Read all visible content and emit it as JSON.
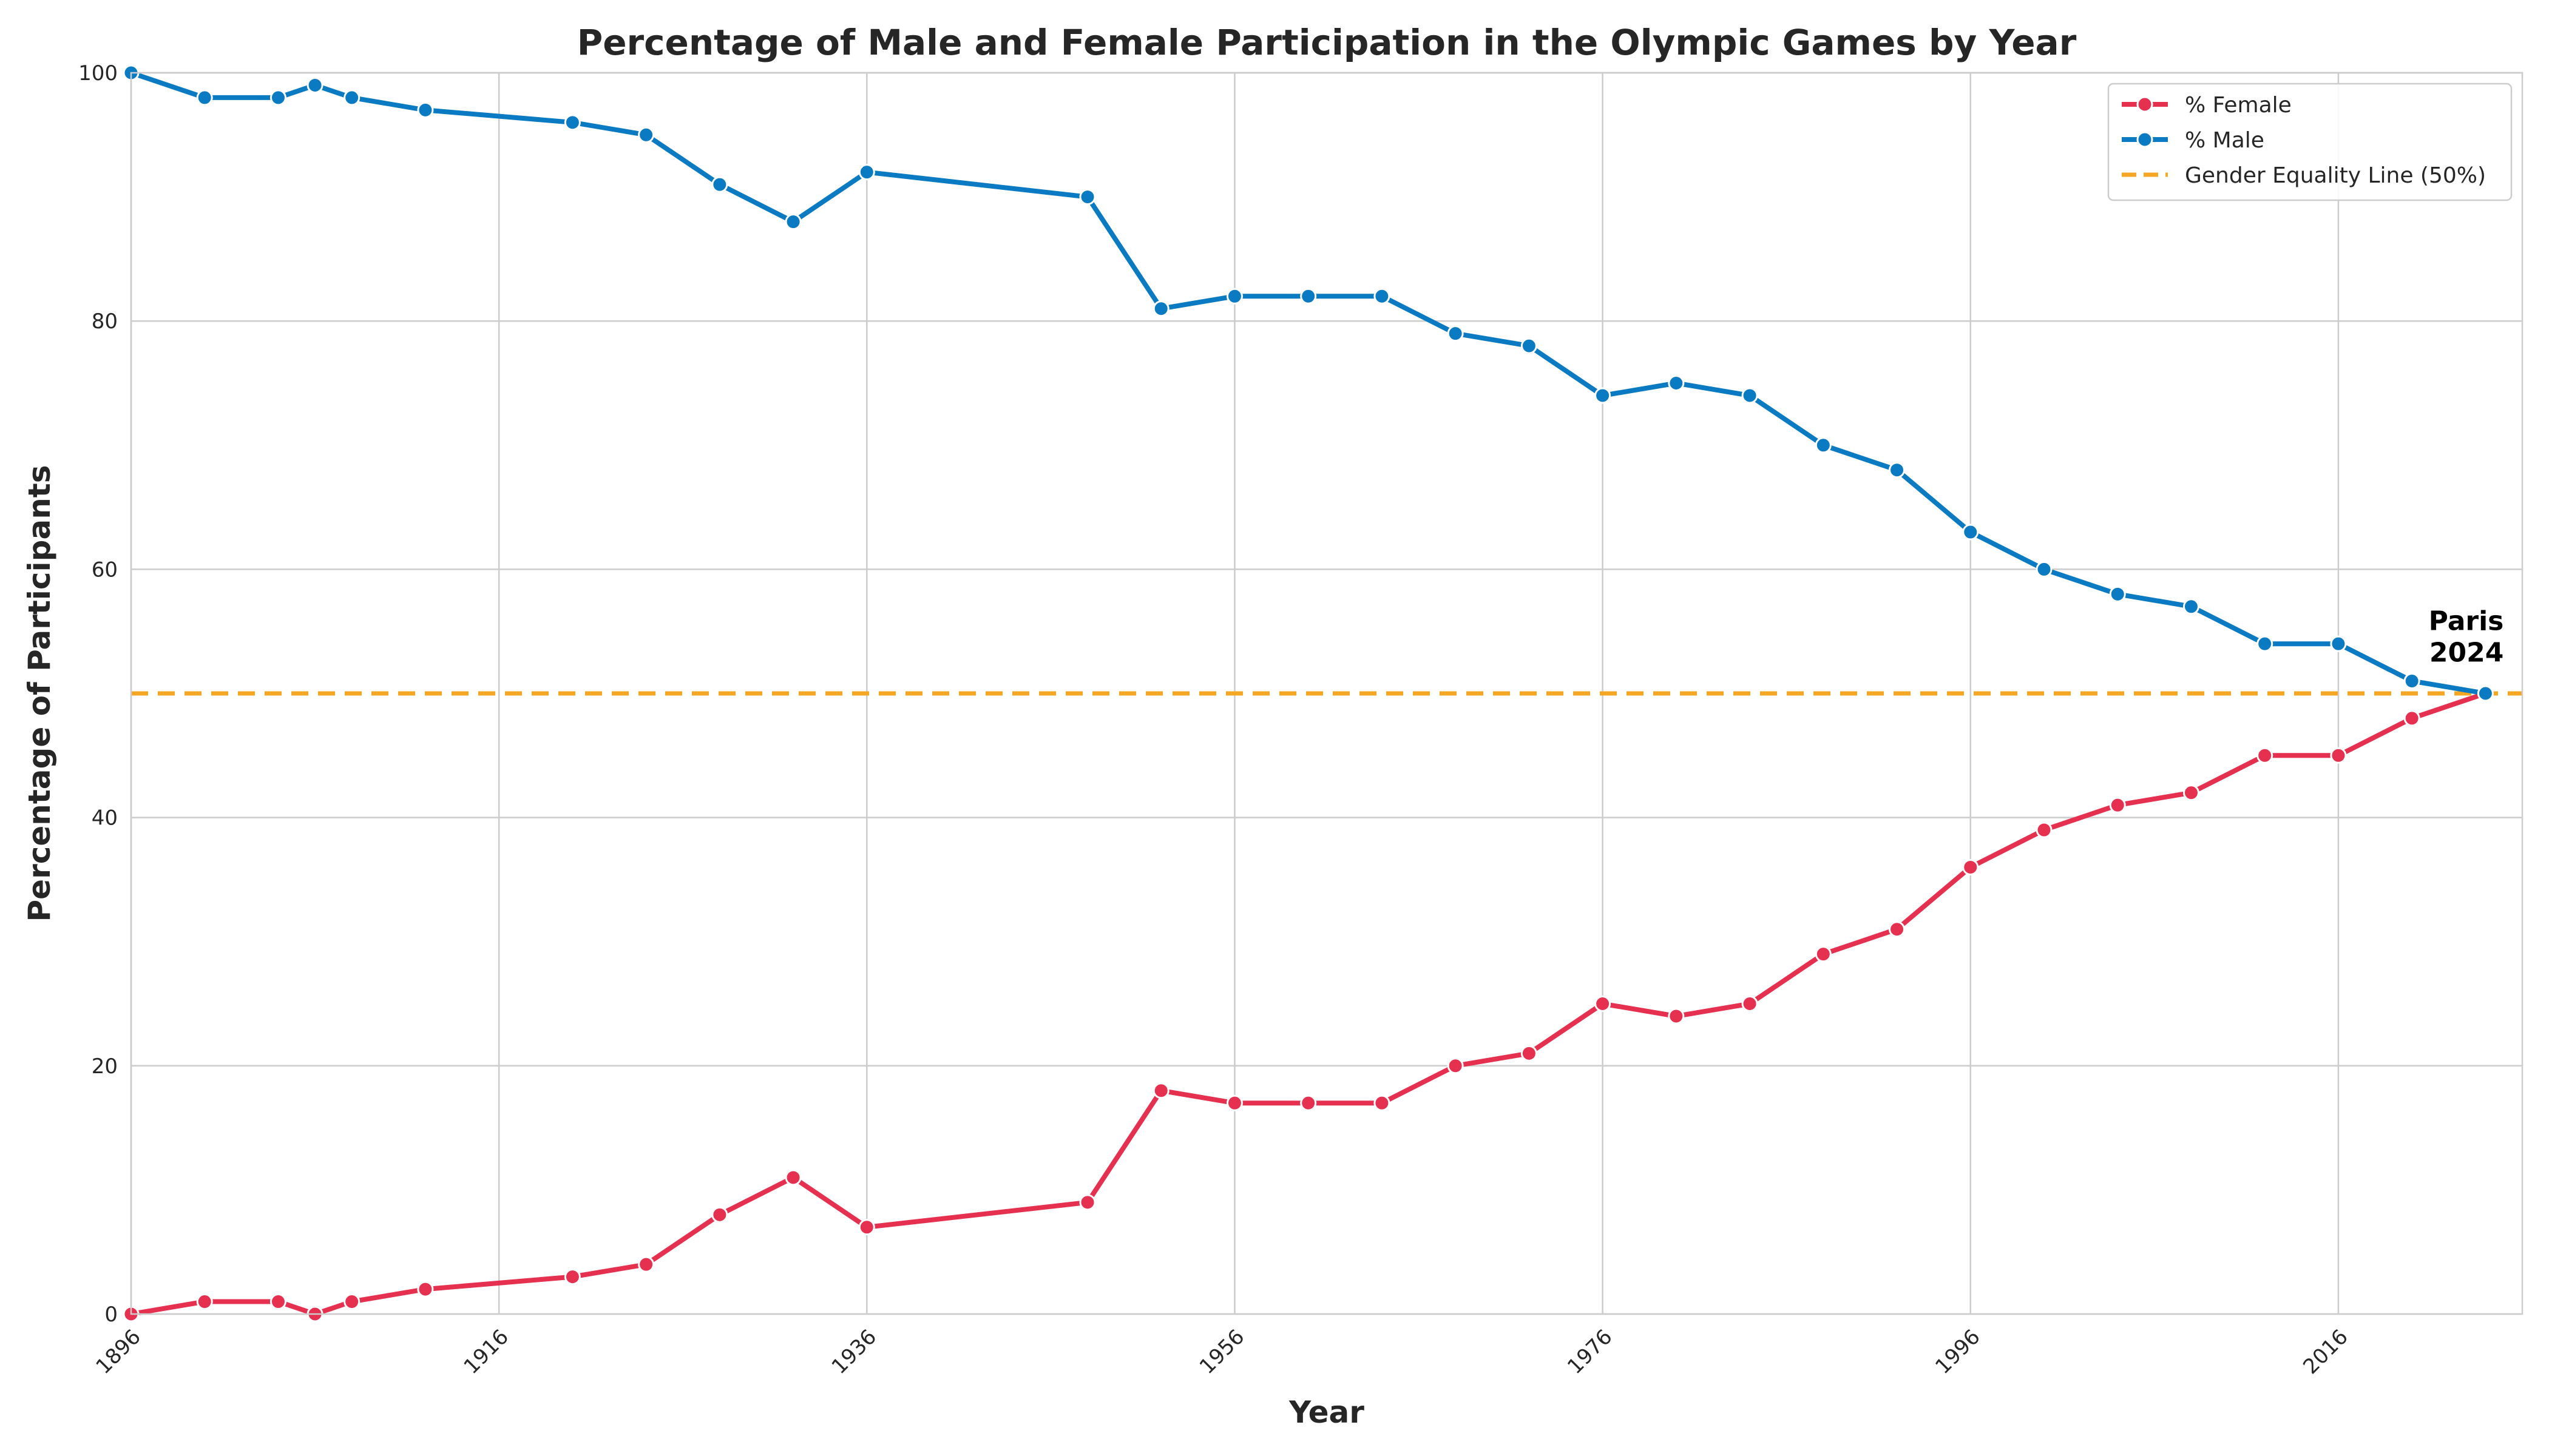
{
  "chart_data": {
    "type": "line",
    "title": "Percentage of Male and Female Participation in the Olympic Games by Year",
    "xlabel": "Year",
    "ylabel": "Percentage of Participants",
    "xlim": [
      1896,
      2026
    ],
    "ylim": [
      0,
      100
    ],
    "x_ticks": [
      1896,
      1916,
      1936,
      1956,
      1976,
      1996,
      2016
    ],
    "y_ticks": [
      0,
      20,
      40,
      60,
      80,
      100
    ],
    "grid": true,
    "legend_position": "top-right",
    "x": [
      1896,
      1900,
      1904,
      1906,
      1908,
      1912,
      1920,
      1924,
      1928,
      1932,
      1936,
      1948,
      1952,
      1956,
      1960,
      1964,
      1968,
      1972,
      1976,
      1980,
      1984,
      1988,
      1992,
      1996,
      2000,
      2004,
      2008,
      2012,
      2016,
      2020,
      2024
    ],
    "series": [
      {
        "name": "% Female",
        "color": "#e5304f",
        "values": [
          0,
          1,
          1,
          0,
          1,
          2,
          3,
          4,
          8,
          11,
          7,
          9,
          18,
          17,
          17,
          17,
          20,
          21,
          25,
          24,
          25,
          29,
          31,
          36,
          39,
          41,
          42,
          45,
          45,
          48,
          50
        ]
      },
      {
        "name": "% Male",
        "color": "#0a7bc2",
        "values": [
          100,
          98,
          98,
          99,
          98,
          97,
          96,
          95,
          91,
          88,
          92,
          90,
          81,
          82,
          82,
          82,
          79,
          78,
          74,
          75,
          74,
          70,
          68,
          63,
          60,
          58,
          57,
          54,
          54,
          51,
          50
        ]
      }
    ],
    "reference_lines": [
      {
        "name": "Gender Equality Line (50%)",
        "y": 50,
        "color": "#f5a623",
        "style": "dashed"
      }
    ],
    "annotations": [
      {
        "lines": [
          "Paris",
          "2024"
        ],
        "x": 2024,
        "y": 55
      }
    ]
  }
}
